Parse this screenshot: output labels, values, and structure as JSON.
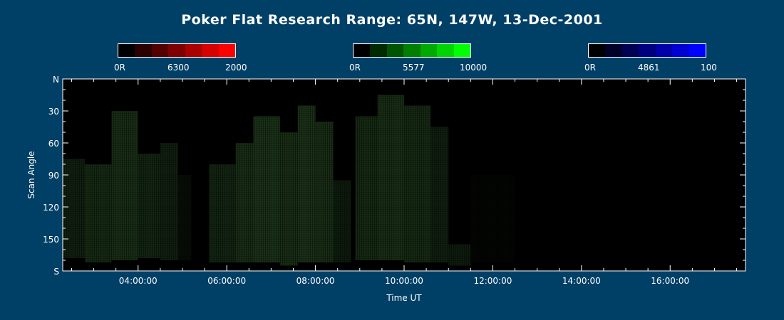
{
  "title": "Poker Flat Research Range: 65N, 147W, 13-Dec-2001",
  "colorbars": [
    {
      "name": "red",
      "min_label": "0R",
      "mid_label": "6300",
      "max_label": "2000",
      "colors": [
        "#000000",
        "#2a0000",
        "#550000",
        "#7f0000",
        "#aa0000",
        "#d50000",
        "#ff0000"
      ]
    },
    {
      "name": "green",
      "min_label": "0R",
      "mid_label": "5577",
      "max_label": "10000",
      "colors": [
        "#000000",
        "#002a00",
        "#005500",
        "#007f00",
        "#00aa00",
        "#00d500",
        "#00ff00"
      ]
    },
    {
      "name": "blue",
      "min_label": "0R",
      "mid_label": "4861",
      "max_label": "100",
      "colors": [
        "#000000",
        "#00002a",
        "#000055",
        "#00007f",
        "#0000aa",
        "#0000d5",
        "#0000ff"
      ]
    }
  ],
  "chart_data": {
    "type": "heatmap",
    "title": "Poker Flat Research Range: 65N, 147W, 13-Dec-2001",
    "xlabel": "Time UT",
    "ylabel": "Scan Angle",
    "x_ticks": [
      "04:00:00",
      "06:00:00",
      "08:00:00",
      "10:00:00",
      "12:00:00",
      "14:00:00",
      "16:00:00"
    ],
    "y_ticks": [
      "N",
      "30",
      "60",
      "90",
      "120",
      "150",
      "S"
    ],
    "xlim_hours": [
      2.3,
      17.7
    ],
    "ylim_deg": [
      0,
      180
    ],
    "background": "#000000",
    "emission_color": "#2f5a2a",
    "emission_regions": [
      {
        "t_start": 2.3,
        "t_end": 2.8,
        "angle_top": 75,
        "angle_bottom": 168,
        "intensity": 0.35
      },
      {
        "t_start": 2.8,
        "t_end": 3.4,
        "angle_top": 80,
        "angle_bottom": 172,
        "intensity": 0.45
      },
      {
        "t_start": 3.4,
        "t_end": 4.0,
        "angle_top": 30,
        "angle_bottom": 170,
        "intensity": 0.5
      },
      {
        "t_start": 4.0,
        "t_end": 4.5,
        "angle_top": 70,
        "angle_bottom": 168,
        "intensity": 0.4
      },
      {
        "t_start": 4.5,
        "t_end": 4.9,
        "angle_top": 60,
        "angle_bottom": 170,
        "intensity": 0.35
      },
      {
        "t_start": 4.9,
        "t_end": 5.2,
        "angle_top": 90,
        "angle_bottom": 170,
        "intensity": 0.15
      },
      {
        "t_start": 5.6,
        "t_end": 6.2,
        "angle_top": 80,
        "angle_bottom": 172,
        "intensity": 0.4
      },
      {
        "t_start": 6.2,
        "t_end": 6.6,
        "angle_top": 60,
        "angle_bottom": 172,
        "intensity": 0.5
      },
      {
        "t_start": 6.6,
        "t_end": 7.2,
        "angle_top": 35,
        "angle_bottom": 172,
        "intensity": 0.55
      },
      {
        "t_start": 7.2,
        "t_end": 7.6,
        "angle_top": 50,
        "angle_bottom": 175,
        "intensity": 0.5
      },
      {
        "t_start": 7.6,
        "t_end": 8.0,
        "angle_top": 25,
        "angle_bottom": 172,
        "intensity": 0.55
      },
      {
        "t_start": 8.0,
        "t_end": 8.4,
        "angle_top": 40,
        "angle_bottom": 172,
        "intensity": 0.5
      },
      {
        "t_start": 8.4,
        "t_end": 8.8,
        "angle_top": 95,
        "angle_bottom": 172,
        "intensity": 0.3
      },
      {
        "t_start": 8.9,
        "t_end": 9.4,
        "angle_top": 35,
        "angle_bottom": 170,
        "intensity": 0.45
      },
      {
        "t_start": 9.4,
        "t_end": 10.0,
        "angle_top": 15,
        "angle_bottom": 170,
        "intensity": 0.5
      },
      {
        "t_start": 10.0,
        "t_end": 10.6,
        "angle_top": 25,
        "angle_bottom": 172,
        "intensity": 0.45
      },
      {
        "t_start": 10.6,
        "t_end": 11.0,
        "angle_top": 45,
        "angle_bottom": 172,
        "intensity": 0.35
      },
      {
        "t_start": 11.0,
        "t_end": 11.5,
        "angle_top": 155,
        "angle_bottom": 175,
        "intensity": 0.3
      },
      {
        "t_start": 11.5,
        "t_end": 12.5,
        "angle_top": 90,
        "angle_bottom": 172,
        "intensity": 0.06
      }
    ]
  }
}
